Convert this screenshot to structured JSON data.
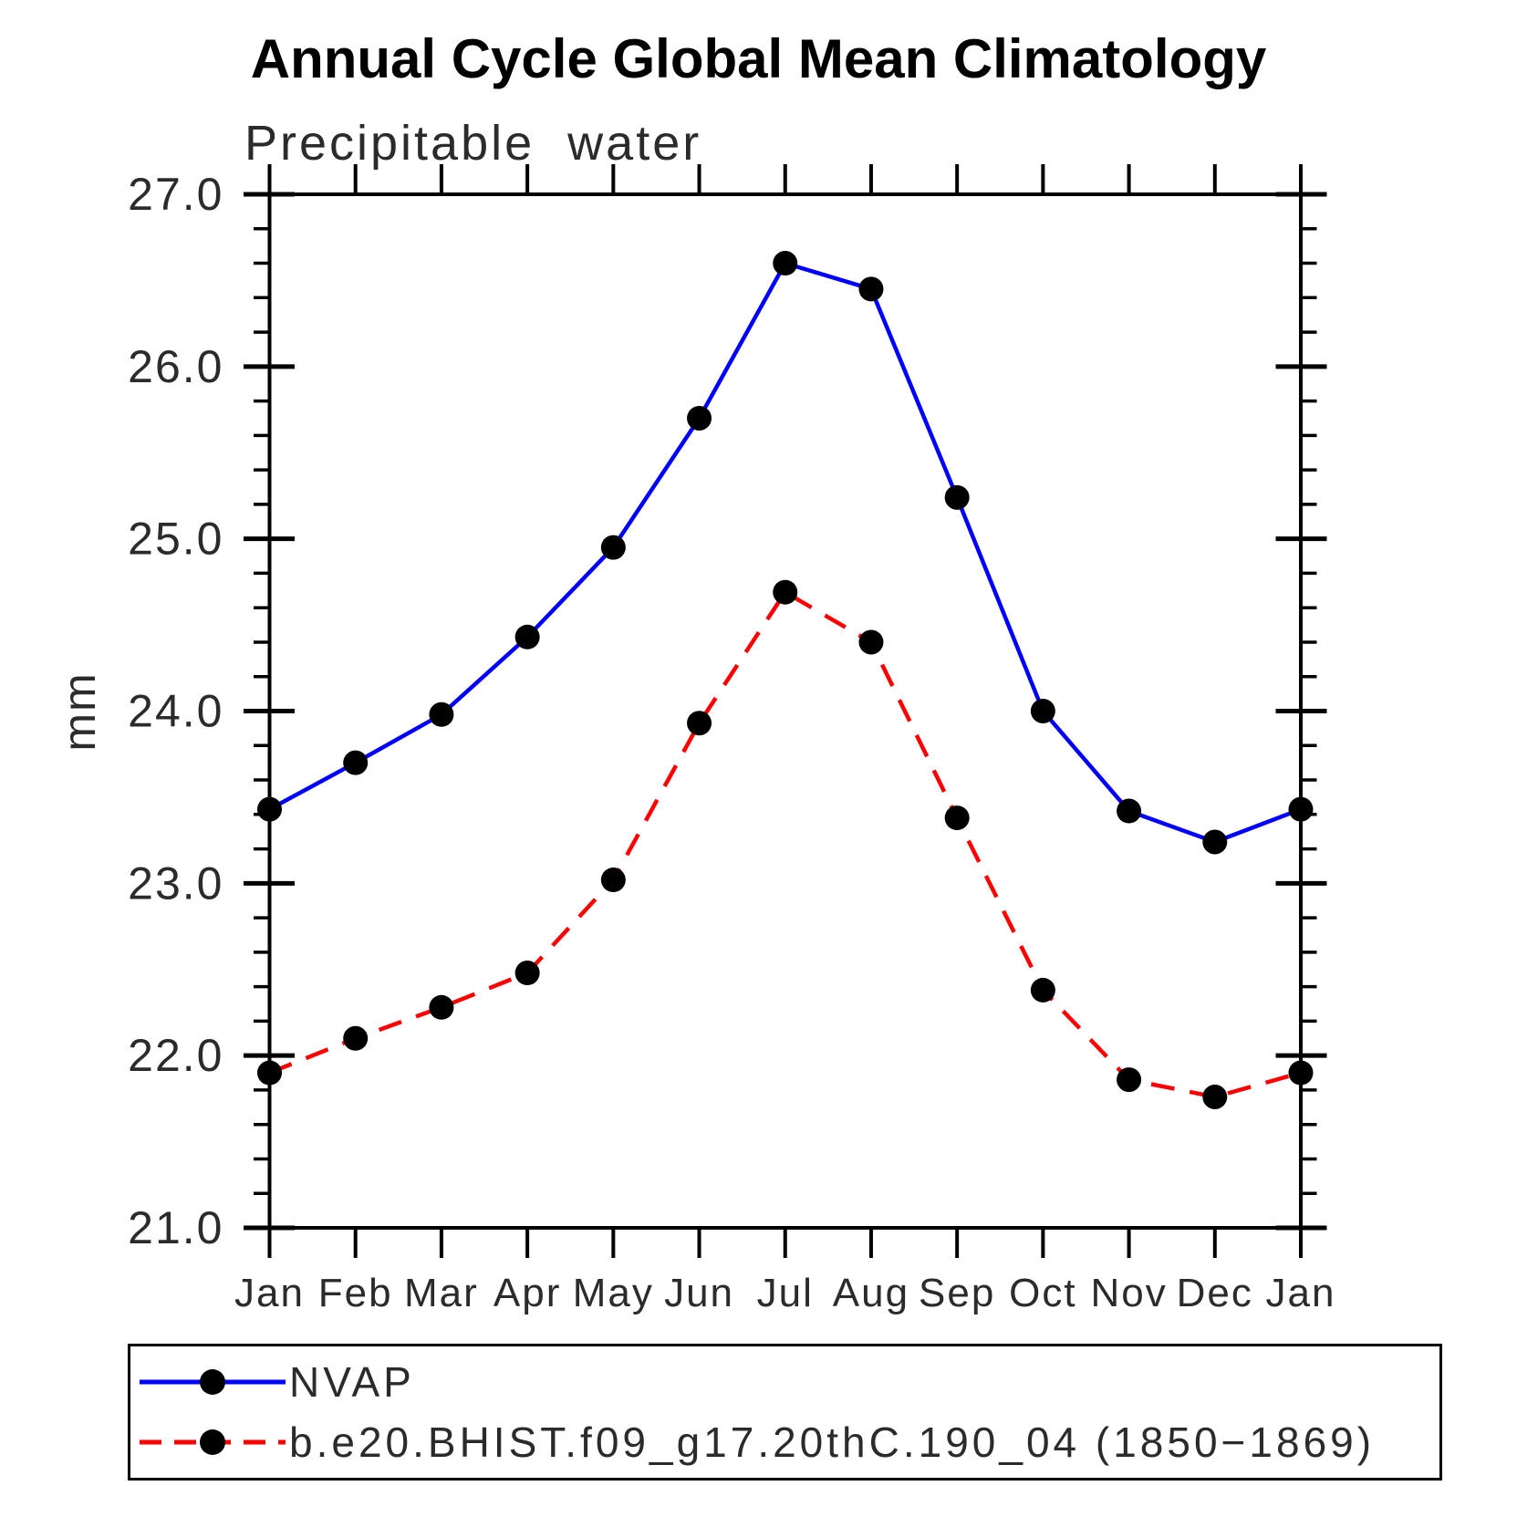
{
  "title": "Annual Cycle Global Mean Climatology",
  "subtitle": "Precipitable water",
  "ylabel": "mm",
  "chart_data": {
    "type": "line",
    "title": "Annual Cycle Global Mean Climatology",
    "subtitle": "Precipitable water",
    "xlabel": "",
    "ylabel": "mm",
    "categories": [
      "Jan",
      "Feb",
      "Mar",
      "Apr",
      "May",
      "Jun",
      "Jul",
      "Aug",
      "Sep",
      "Oct",
      "Nov",
      "Dec",
      "Jan"
    ],
    "series": [
      {
        "name": "NVAP",
        "color": "#0000ff",
        "line_style": "solid",
        "marker": "circle",
        "marker_color": "#000000",
        "values": [
          23.43,
          23.7,
          23.98,
          24.43,
          24.95,
          25.7,
          26.6,
          26.45,
          25.24,
          24.0,
          23.42,
          23.24,
          23.43
        ]
      },
      {
        "name": "b.e20.BHIST.f09_g17.20thC.190_04 (1850−1869)",
        "color": "#ff0000",
        "line_style": "dashed",
        "marker": "circle",
        "marker_color": "#000000",
        "values": [
          21.9,
          22.1,
          22.28,
          22.48,
          23.02,
          23.93,
          24.69,
          24.4,
          23.38,
          22.38,
          21.86,
          21.76,
          21.9
        ]
      }
    ],
    "ylim": [
      21.0,
      27.0
    ],
    "ytick_step": 1.0,
    "yminor_step": 0.2,
    "ytick_labels": [
      "21.0",
      "22.0",
      "23.0",
      "24.0",
      "25.0",
      "26.0",
      "27.0"
    ],
    "grid": false,
    "legend_position": "bottom-left-box"
  }
}
